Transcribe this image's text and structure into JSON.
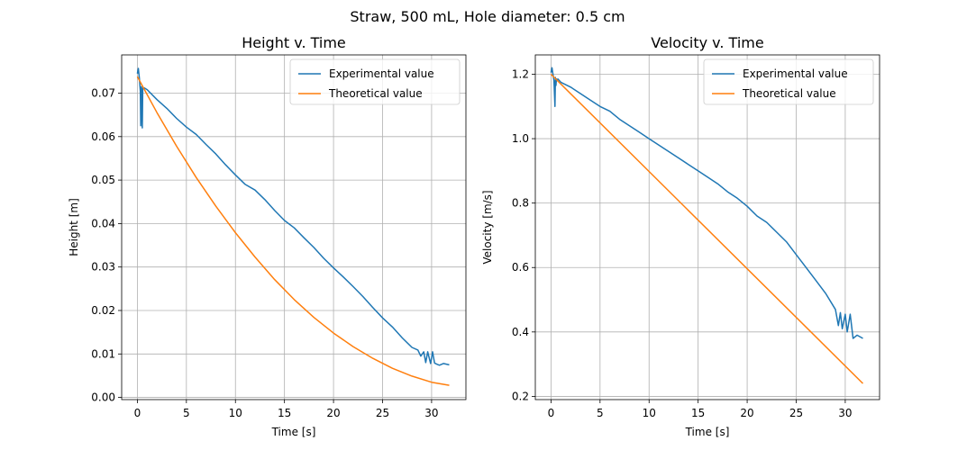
{
  "figure": {
    "suptitle": "Straw, 500 mL, Hole diameter: 0.5 cm"
  },
  "chart_data": [
    {
      "type": "line",
      "title": "Height v. Time",
      "xlabel": "Time [s]",
      "ylabel": "Height [m]",
      "xlim": [
        -1.6,
        33.5
      ],
      "ylim": [
        -0.0005,
        0.0788
      ],
      "xticks": [
        0,
        5,
        10,
        15,
        20,
        25,
        30
      ],
      "xtick_labels": [
        "0",
        "5",
        "10",
        "15",
        "20",
        "25",
        "30"
      ],
      "yticks": [
        0.0,
        0.01,
        0.02,
        0.03,
        0.04,
        0.05,
        0.06,
        0.07
      ],
      "ytick_labels": [
        "0.00",
        "0.01",
        "0.02",
        "0.03",
        "0.04",
        "0.05",
        "0.06",
        "0.07"
      ],
      "grid": true,
      "legend": "top-right",
      "series": [
        {
          "name": "Experimental value",
          "color": "#1f77b4",
          "x": [
            0,
            0.1,
            0.2,
            0.3,
            0.35,
            0.4,
            0.45,
            0.5,
            0.55,
            0.6,
            0.7,
            1,
            2,
            3,
            4,
            5,
            6,
            7,
            8,
            9,
            10,
            11,
            12,
            13,
            14,
            15,
            16,
            17,
            18,
            19,
            20,
            21,
            22,
            23,
            24,
            25,
            26,
            27,
            28,
            28.6,
            28.9,
            29.2,
            29.4,
            29.6,
            29.9,
            30.1,
            30.3,
            30.6,
            30.8,
            31.2,
            31.8
          ],
          "y": [
            0.0745,
            0.0757,
            0.0735,
            0.0705,
            0.0625,
            0.0715,
            0.0695,
            0.062,
            0.0712,
            0.071,
            0.0712,
            0.0708,
            0.0685,
            0.0665,
            0.0642,
            0.0622,
            0.0605,
            0.0582,
            0.056,
            0.0535,
            0.0512,
            0.049,
            0.0477,
            0.0455,
            0.043,
            0.0407,
            0.039,
            0.0367,
            0.0345,
            0.032,
            0.0298,
            0.0277,
            0.0255,
            0.0232,
            0.0207,
            0.0183,
            0.0162,
            0.0137,
            0.0115,
            0.0109,
            0.0095,
            0.0105,
            0.008,
            0.0105,
            0.0078,
            0.0105,
            0.0079,
            0.0076,
            0.0074,
            0.0078,
            0.0075
          ]
        },
        {
          "name": "Theoretical value",
          "color": "#ff7f0e",
          "x": [
            0,
            2,
            4,
            6,
            8,
            10,
            12,
            14,
            16,
            18,
            20,
            22,
            24,
            26,
            28,
            30,
            31.8
          ],
          "y": [
            0.0738,
            0.0655,
            0.0578,
            0.0506,
            0.044,
            0.0379,
            0.0323,
            0.0271,
            0.0225,
            0.0184,
            0.0148,
            0.0117,
            0.009,
            0.0067,
            0.0049,
            0.0035,
            0.0028
          ]
        }
      ]
    },
    {
      "type": "line",
      "title": "Velocity v. Time",
      "xlabel": "Time [s]",
      "ylabel": "Velocity [m/s]",
      "xlim": [
        -1.6,
        33.5
      ],
      "ylim": [
        0.19,
        1.26
      ],
      "xticks": [
        0,
        5,
        10,
        15,
        20,
        25,
        30
      ],
      "xtick_labels": [
        "0",
        "5",
        "10",
        "15",
        "20",
        "25",
        "30"
      ],
      "yticks": [
        0.2,
        0.4,
        0.6,
        0.8,
        1.0,
        1.2
      ],
      "ytick_labels": [
        "0.2",
        "0.4",
        "0.6",
        "0.8",
        "1.0",
        "1.2"
      ],
      "grid": true,
      "legend": "top-right",
      "series": [
        {
          "name": "Experimental value",
          "color": "#1f77b4",
          "x": [
            0,
            0.1,
            0.2,
            0.3,
            0.4,
            0.45,
            0.5,
            0.55,
            0.6,
            0.7,
            1,
            2,
            3,
            4,
            5,
            6,
            7,
            8,
            9,
            10,
            11,
            12,
            13,
            14,
            15,
            16,
            17,
            18,
            19,
            20,
            21,
            22,
            23,
            24,
            25,
            26,
            27,
            28,
            29,
            29.3,
            29.5,
            29.7,
            30,
            30.2,
            30.5,
            30.8,
            31.2,
            31.8
          ],
          "y": [
            1.205,
            1.22,
            1.2,
            1.18,
            1.1,
            1.19,
            1.165,
            1.185,
            1.18,
            1.185,
            1.175,
            1.16,
            1.14,
            1.12,
            1.1,
            1.085,
            1.06,
            1.04,
            1.02,
            1.0,
            0.98,
            0.96,
            0.94,
            0.92,
            0.9,
            0.88,
            0.86,
            0.835,
            0.815,
            0.79,
            0.76,
            0.74,
            0.71,
            0.68,
            0.64,
            0.6,
            0.56,
            0.52,
            0.47,
            0.42,
            0.46,
            0.41,
            0.455,
            0.4,
            0.455,
            0.38,
            0.39,
            0.38
          ]
        },
        {
          "name": "Theoretical value",
          "color": "#ff7f0e",
          "x": [
            0,
            31.8
          ],
          "y": [
            1.2,
            0.24
          ]
        }
      ]
    }
  ]
}
